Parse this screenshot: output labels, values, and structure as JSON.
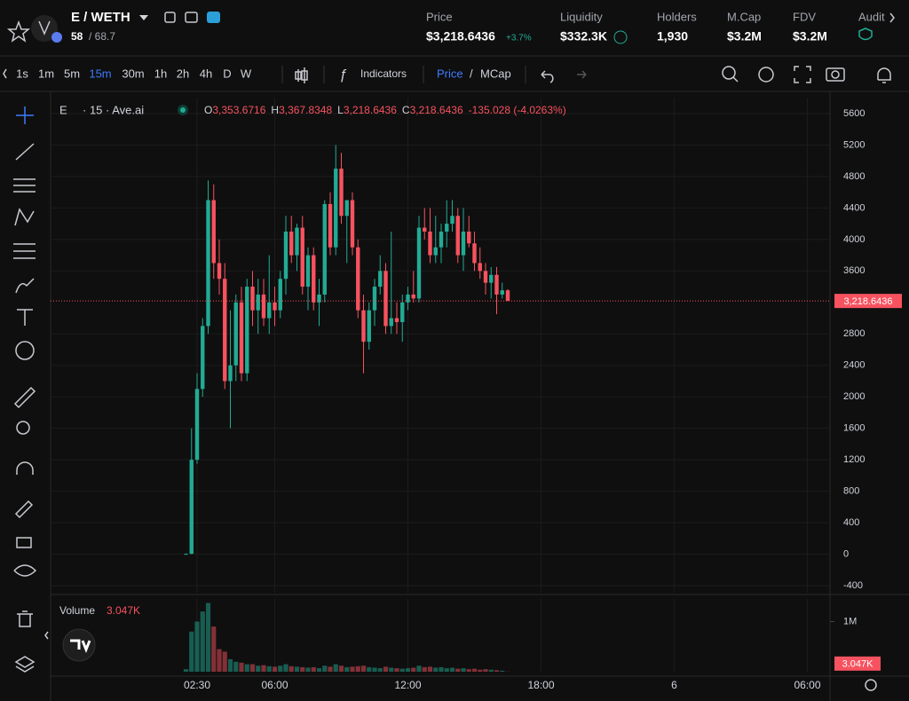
{
  "header": {
    "pair": "E / WETH",
    "holders_ratio": "58",
    "ratio_total": "/ 68.7",
    "stats": [
      {
        "label": "Price",
        "value": "$3,218.6436",
        "change": "+3.7%"
      },
      {
        "label": "Liquidity",
        "value": "$332.3K"
      },
      {
        "label": "Holders",
        "value": "1,930"
      },
      {
        "label": "M.Cap",
        "value": "$3.2M"
      },
      {
        "label": "FDV",
        "value": "$3.2M"
      },
      {
        "label": "Audit"
      }
    ]
  },
  "toolbar": {
    "intervals": [
      "1s",
      "1m",
      "5m",
      "15m",
      "30m",
      "1h",
      "2h",
      "4h",
      "D",
      "W"
    ],
    "active_interval": "15m",
    "indicators": "Indicators",
    "price_mode": "Price",
    "separator": "/",
    "mcap_mode": "MCap"
  },
  "legend": {
    "symbol": "E",
    "source": "· 15 · Ave.ai",
    "ohlc": [
      {
        "key": "O",
        "value": "3,353.6716"
      },
      {
        "key": "H",
        "value": "3,367.8348"
      },
      {
        "key": "L",
        "value": "3,218.6436"
      },
      {
        "key": "C",
        "value": "3,218.6436"
      }
    ],
    "change": "-135.028 (-4.0263%)"
  },
  "volume_legend": {
    "label": "Volume",
    "value": "3.047K"
  },
  "chart_data": {
    "type": "candlestick",
    "up_color": "#22ab94",
    "down_color": "#f7525f",
    "grid": true,
    "x": [
      2,
      2.25,
      2.5,
      2.75,
      3,
      3.25,
      3.5,
      3.75,
      4,
      4.25,
      4.5,
      4.75,
      5,
      5.25,
      5.5,
      5.75,
      6,
      6.25,
      6.5,
      6.75,
      7,
      7.25,
      7.5,
      7.75,
      8,
      8.25,
      8.5,
      8.75,
      9,
      9.25,
      9.5,
      9.75,
      10,
      10.25,
      10.5,
      10.75,
      11,
      11.25,
      11.5,
      11.75,
      12,
      12.25,
      12.5,
      12.75,
      13,
      13.25,
      13.5,
      13.75,
      14,
      14.25,
      14.5,
      14.75,
      15,
      15.25,
      15.5,
      15.75,
      16,
      16.25,
      16.5
    ],
    "open": [
      0,
      5,
      1200,
      2100,
      2900,
      4500,
      3700,
      3500,
      2200,
      2400,
      3200,
      2300,
      3400,
      3100,
      3300,
      3000,
      3200,
      3100,
      3500,
      4100,
      3800,
      4150,
      3400,
      3800,
      3200,
      3300,
      4450,
      3900,
      4900,
      4300,
      4500,
      3900,
      3100,
      2700,
      3100,
      3400,
      3600,
      2900,
      3000,
      2950,
      3200,
      3300,
      3250,
      4150,
      4100,
      3800,
      3900,
      4100,
      4200,
      4300,
      3800,
      4100,
      3950,
      3700,
      3600,
      3450,
      3550,
      3300,
      3353.6716
    ],
    "high": [
      10,
      1600,
      2300,
      3000,
      4750,
      4700,
      4000,
      3700,
      3100,
      3300,
      3400,
      3500,
      3600,
      3500,
      3500,
      3800,
      3400,
      3600,
      4300,
      4300,
      4200,
      4300,
      3900,
      3900,
      3500,
      4500,
      4600,
      5200,
      5100,
      4500,
      4600,
      4000,
      3300,
      3200,
      3500,
      3800,
      3700,
      4100,
      3200,
      3300,
      3400,
      3600,
      4300,
      4400,
      4400,
      4300,
      4200,
      4500,
      4500,
      4400,
      4400,
      4300,
      4100,
      3900,
      3700,
      3650,
      3650,
      3450,
      3367.8348
    ],
    "low": [
      0,
      0,
      1150,
      2000,
      2800,
      3500,
      3300,
      2100,
      1600,
      2200,
      2200,
      2200,
      2900,
      2800,
      2900,
      2800,
      2900,
      3000,
      3300,
      3700,
      3600,
      3300,
      3100,
      3100,
      2900,
      3200,
      3800,
      3800,
      4200,
      3700,
      3800,
      3000,
      2300,
      2600,
      2900,
      3300,
      2800,
      2800,
      2800,
      2700,
      3100,
      3200,
      3200,
      4000,
      3700,
      3700,
      3700,
      3900,
      4100,
      3700,
      3600,
      3900,
      3600,
      3500,
      3300,
      3250,
      3050,
      3250,
      3218.6436
    ],
    "close": [
      5,
      1200,
      2100,
      2900,
      4500,
      3700,
      3500,
      2200,
      2400,
      3200,
      2300,
      3400,
      3100,
      3300,
      3000,
      3200,
      3100,
      3500,
      4100,
      3800,
      4150,
      3400,
      3800,
      3200,
      3300,
      4450,
      3900,
      4900,
      4300,
      4500,
      3900,
      3100,
      2700,
      3100,
      3400,
      3600,
      2900,
      3000,
      2950,
      3200,
      3300,
      3250,
      4150,
      4100,
      3800,
      3900,
      4100,
      4200,
      4300,
      3800,
      4100,
      3950,
      3700,
      3600,
      3450,
      3550,
      3300,
      3354,
      3218.6436
    ],
    "volume": [
      50000,
      800000,
      1000000,
      1200000,
      1370000,
      900000,
      450000,
      400000,
      250000,
      200000,
      180000,
      150000,
      150000,
      120000,
      130000,
      110000,
      100000,
      120000,
      150000,
      110000,
      100000,
      90000,
      80000,
      90000,
      70000,
      120000,
      100000,
      150000,
      120000,
      90000,
      100000,
      110000,
      120000,
      90000,
      80000,
      70000,
      100000,
      80000,
      70000,
      60000,
      70000,
      80000,
      120000,
      90000,
      100000,
      80000,
      90000,
      70000,
      80000,
      60000,
      70000,
      50000,
      60000,
      40000,
      50000,
      40000,
      30000,
      20000,
      3047
    ],
    "xlim": [
      -4.1,
      31.02
    ],
    "xticks": [
      {
        "value": 2.5,
        "label": "02:30"
      },
      {
        "value": 6,
        "label": "06:00"
      },
      {
        "value": 12,
        "label": "12:00"
      },
      {
        "value": 18,
        "label": "18:00"
      },
      {
        "value": 24,
        "label": "6"
      },
      {
        "value": 30,
        "label": "06:00"
      }
    ],
    "ylim": [
      -490,
      5803
    ],
    "yticks": [
      5600,
      5200,
      4800,
      4400,
      4000,
      3600,
      2800,
      2400,
      2000,
      1600,
      1200,
      800,
      400,
      0,
      -400
    ],
    "last_price": {
      "value": 3218.6436,
      "label": "3,218.6436"
    },
    "volume_ylim": [
      0,
      1450000
    ],
    "volume_yticks": [
      {
        "value": 1000000,
        "label": "1M"
      }
    ],
    "last_volume": {
      "value": 3047,
      "label": "3.047K"
    }
  }
}
